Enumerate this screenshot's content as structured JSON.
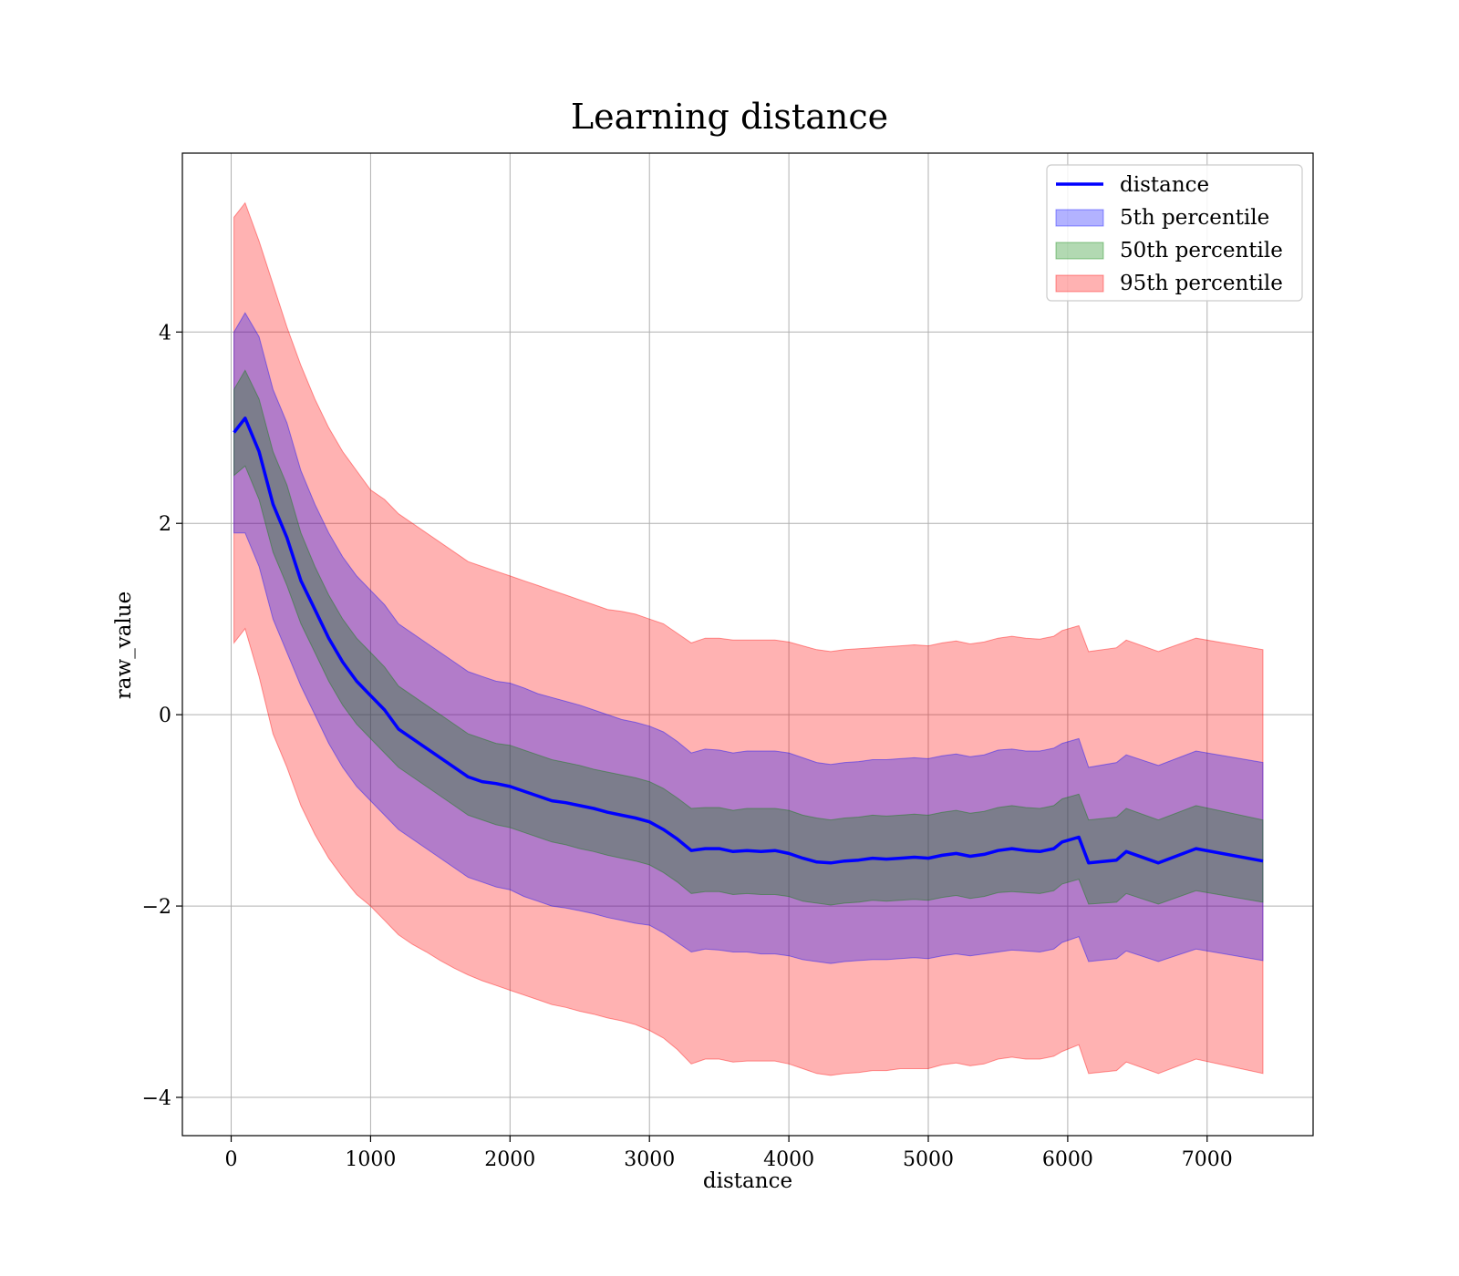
{
  "chart_data": {
    "type": "area",
    "title": "Learning distance",
    "xlabel": "distance",
    "ylabel": "raw_value",
    "xlim": [
      -350,
      7760
    ],
    "ylim": [
      -4.4,
      5.87
    ],
    "xticks": [
      0,
      1000,
      2000,
      3000,
      4000,
      5000,
      6000,
      7000
    ],
    "yticks": [
      -4,
      -2,
      0,
      2,
      4
    ],
    "ytick_labels": [
      "−4",
      "−2",
      "0",
      "2",
      "4"
    ],
    "grid": true,
    "legend_position": "upper right",
    "x": [
      20,
      100,
      200,
      300,
      400,
      500,
      600,
      700,
      800,
      900,
      1000,
      1100,
      1200,
      1300,
      1400,
      1500,
      1600,
      1700,
      1800,
      1900,
      2000,
      2100,
      2200,
      2300,
      2400,
      2500,
      2600,
      2700,
      2800,
      2900,
      3000,
      3100,
      3200,
      3300,
      3400,
      3500,
      3600,
      3700,
      3800,
      3900,
      4000,
      4100,
      4200,
      4300,
      4400,
      4500,
      4600,
      4700,
      4800,
      4900,
      5000,
      5100,
      5200,
      5300,
      5400,
      5500,
      5600,
      5700,
      5800,
      5900,
      5960,
      6080,
      6150,
      6350,
      6420,
      6650,
      6920,
      7400
    ],
    "series": [
      {
        "name": "distance",
        "kind": "line",
        "color": "#0000ff",
        "values": [
          2.95,
          3.1,
          2.75,
          2.2,
          1.85,
          1.4,
          1.1,
          0.8,
          0.55,
          0.35,
          0.2,
          0.05,
          -0.15,
          -0.25,
          -0.35,
          -0.45,
          -0.55,
          -0.65,
          -0.7,
          -0.72,
          -0.75,
          -0.8,
          -0.85,
          -0.9,
          -0.92,
          -0.95,
          -0.98,
          -1.02,
          -1.05,
          -1.08,
          -1.12,
          -1.2,
          -1.3,
          -1.42,
          -1.4,
          -1.4,
          -1.43,
          -1.42,
          -1.43,
          -1.42,
          -1.45,
          -1.5,
          -1.54,
          -1.55,
          -1.53,
          -1.52,
          -1.5,
          -1.51,
          -1.5,
          -1.49,
          -1.5,
          -1.47,
          -1.45,
          -1.48,
          -1.46,
          -1.42,
          -1.4,
          -1.42,
          -1.43,
          -1.4,
          -1.33,
          -1.28,
          -1.55,
          -1.52,
          -1.43,
          -1.55,
          -1.4,
          -1.53
        ]
      },
      {
        "name": "5th percentile",
        "kind": "band",
        "color": "#0000ff",
        "opacity": 0.3,
        "lower": [
          1.9,
          1.9,
          1.55,
          1.0,
          0.65,
          0.3,
          0.0,
          -0.3,
          -0.55,
          -0.75,
          -0.9,
          -1.05,
          -1.2,
          -1.3,
          -1.4,
          -1.5,
          -1.6,
          -1.7,
          -1.75,
          -1.8,
          -1.83,
          -1.9,
          -1.95,
          -2.0,
          -2.02,
          -2.05,
          -2.08,
          -2.12,
          -2.15,
          -2.18,
          -2.2,
          -2.28,
          -2.38,
          -2.48,
          -2.45,
          -2.46,
          -2.48,
          -2.48,
          -2.5,
          -2.5,
          -2.52,
          -2.56,
          -2.58,
          -2.6,
          -2.58,
          -2.57,
          -2.56,
          -2.56,
          -2.55,
          -2.54,
          -2.55,
          -2.52,
          -2.5,
          -2.52,
          -2.5,
          -2.48,
          -2.46,
          -2.47,
          -2.48,
          -2.45,
          -2.38,
          -2.32,
          -2.58,
          -2.55,
          -2.47,
          -2.58,
          -2.45,
          -2.57
        ],
        "upper": [
          4.0,
          4.2,
          3.95,
          3.4,
          3.05,
          2.55,
          2.2,
          1.9,
          1.65,
          1.45,
          1.3,
          1.15,
          0.95,
          0.85,
          0.75,
          0.65,
          0.55,
          0.45,
          0.4,
          0.35,
          0.33,
          0.28,
          0.22,
          0.18,
          0.14,
          0.1,
          0.05,
          0.0,
          -0.05,
          -0.08,
          -0.12,
          -0.18,
          -0.28,
          -0.4,
          -0.36,
          -0.37,
          -0.4,
          -0.38,
          -0.38,
          -0.38,
          -0.4,
          -0.45,
          -0.5,
          -0.52,
          -0.5,
          -0.49,
          -0.47,
          -0.47,
          -0.46,
          -0.45,
          -0.46,
          -0.43,
          -0.41,
          -0.44,
          -0.42,
          -0.37,
          -0.36,
          -0.38,
          -0.38,
          -0.35,
          -0.3,
          -0.25,
          -0.55,
          -0.5,
          -0.42,
          -0.53,
          -0.38,
          -0.5
        ]
      },
      {
        "name": "50th percentile",
        "kind": "band",
        "color": "#008000",
        "opacity": 0.3,
        "lower": [
          2.5,
          2.6,
          2.25,
          1.7,
          1.35,
          0.95,
          0.65,
          0.35,
          0.1,
          -0.1,
          -0.25,
          -0.4,
          -0.55,
          -0.65,
          -0.75,
          -0.85,
          -0.95,
          -1.05,
          -1.1,
          -1.15,
          -1.18,
          -1.23,
          -1.28,
          -1.33,
          -1.36,
          -1.4,
          -1.43,
          -1.47,
          -1.5,
          -1.53,
          -1.57,
          -1.65,
          -1.75,
          -1.87,
          -1.85,
          -1.85,
          -1.88,
          -1.87,
          -1.88,
          -1.88,
          -1.9,
          -1.95,
          -1.97,
          -1.99,
          -1.97,
          -1.96,
          -1.94,
          -1.95,
          -1.94,
          -1.93,
          -1.94,
          -1.91,
          -1.89,
          -1.92,
          -1.9,
          -1.86,
          -1.85,
          -1.86,
          -1.87,
          -1.84,
          -1.77,
          -1.72,
          -1.98,
          -1.96,
          -1.87,
          -1.98,
          -1.84,
          -1.96
        ],
        "upper": [
          3.4,
          3.6,
          3.3,
          2.75,
          2.4,
          1.9,
          1.55,
          1.25,
          1.0,
          0.8,
          0.65,
          0.5,
          0.3,
          0.2,
          0.1,
          0.0,
          -0.1,
          -0.2,
          -0.25,
          -0.3,
          -0.32,
          -0.37,
          -0.42,
          -0.47,
          -0.5,
          -0.53,
          -0.57,
          -0.6,
          -0.63,
          -0.66,
          -0.7,
          -0.77,
          -0.87,
          -0.98,
          -0.97,
          -0.97,
          -1.0,
          -0.98,
          -0.98,
          -0.98,
          -1.0,
          -1.05,
          -1.08,
          -1.1,
          -1.08,
          -1.07,
          -1.05,
          -1.06,
          -1.05,
          -1.04,
          -1.05,
          -1.02,
          -1.0,
          -1.03,
          -1.01,
          -0.97,
          -0.95,
          -0.97,
          -0.98,
          -0.95,
          -0.88,
          -0.83,
          -1.1,
          -1.07,
          -0.98,
          -1.1,
          -0.95,
          -1.1
        ]
      },
      {
        "name": "95th percentile",
        "kind": "band",
        "color": "#ff0000",
        "opacity": 0.3,
        "lower": [
          0.75,
          0.9,
          0.4,
          -0.2,
          -0.55,
          -0.95,
          -1.25,
          -1.5,
          -1.7,
          -1.88,
          -2.0,
          -2.15,
          -2.3,
          -2.4,
          -2.48,
          -2.57,
          -2.65,
          -2.72,
          -2.78,
          -2.83,
          -2.88,
          -2.93,
          -2.98,
          -3.03,
          -3.06,
          -3.1,
          -3.13,
          -3.17,
          -3.2,
          -3.24,
          -3.3,
          -3.38,
          -3.5,
          -3.65,
          -3.6,
          -3.6,
          -3.63,
          -3.62,
          -3.62,
          -3.62,
          -3.65,
          -3.7,
          -3.75,
          -3.77,
          -3.75,
          -3.74,
          -3.72,
          -3.72,
          -3.7,
          -3.7,
          -3.7,
          -3.66,
          -3.64,
          -3.67,
          -3.65,
          -3.6,
          -3.58,
          -3.6,
          -3.6,
          -3.57,
          -3.52,
          -3.45,
          -3.75,
          -3.72,
          -3.63,
          -3.75,
          -3.6,
          -3.75
        ],
        "upper": [
          5.2,
          5.35,
          4.95,
          4.5,
          4.05,
          3.65,
          3.3,
          3.0,
          2.75,
          2.55,
          2.35,
          2.25,
          2.1,
          2.0,
          1.9,
          1.8,
          1.7,
          1.6,
          1.55,
          1.5,
          1.45,
          1.4,
          1.35,
          1.3,
          1.25,
          1.2,
          1.15,
          1.1,
          1.08,
          1.05,
          1.0,
          0.95,
          0.85,
          0.75,
          0.8,
          0.8,
          0.78,
          0.78,
          0.78,
          0.78,
          0.76,
          0.72,
          0.68,
          0.66,
          0.68,
          0.69,
          0.7,
          0.71,
          0.72,
          0.73,
          0.72,
          0.75,
          0.77,
          0.74,
          0.76,
          0.8,
          0.82,
          0.8,
          0.79,
          0.82,
          0.88,
          0.93,
          0.66,
          0.7,
          0.78,
          0.66,
          0.8,
          0.68
        ]
      }
    ]
  }
}
